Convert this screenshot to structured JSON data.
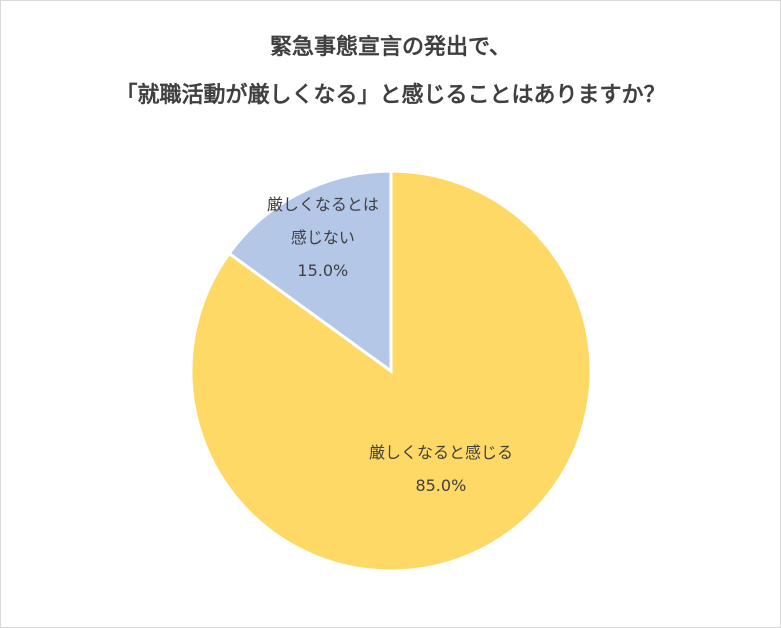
{
  "chart_data": {
    "type": "pie",
    "title": "緊急事態宣言の発出で、\n「就職活動が厳しくなる」と感じることはありますか？",
    "categories": [
      "厳しくなると感じる",
      "厳しくなるとは\n感じない"
    ],
    "values": [
      85,
      15
    ],
    "value_labels": [
      "85.0%",
      "15.0%"
    ],
    "colors": [
      "#ffd966",
      "#b4c7e7"
    ]
  }
}
